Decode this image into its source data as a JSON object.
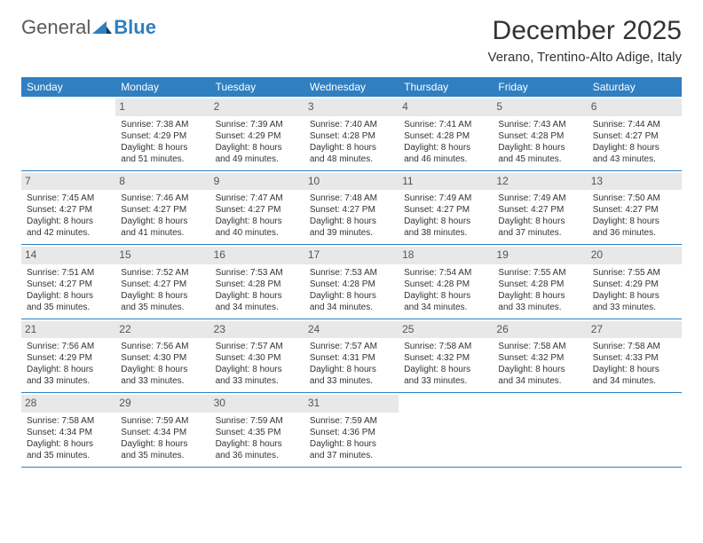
{
  "brand": {
    "part1": "General",
    "part2": "Blue"
  },
  "title": "December 2025",
  "location": "Verano, Trentino-Alto Adige, Italy",
  "colors": {
    "header_bg": "#2f7fc1",
    "header_fg": "#ffffff",
    "daynum_bg": "#e8e8e8",
    "row_border": "#2f7fc1",
    "text": "#333333",
    "page_bg": "#ffffff"
  },
  "typography": {
    "title_fontsize": 30,
    "location_fontsize": 15,
    "header_fontsize": 12,
    "cell_fontsize": 10,
    "daynum_fontsize": 12
  },
  "weekdays": [
    "Sunday",
    "Monday",
    "Tuesday",
    "Wednesday",
    "Thursday",
    "Friday",
    "Saturday"
  ],
  "weeks": [
    [
      null,
      {
        "n": "1",
        "sr": "Sunrise: 7:38 AM",
        "ss": "Sunset: 4:29 PM",
        "dl": "Daylight: 8 hours and 51 minutes."
      },
      {
        "n": "2",
        "sr": "Sunrise: 7:39 AM",
        "ss": "Sunset: 4:29 PM",
        "dl": "Daylight: 8 hours and 49 minutes."
      },
      {
        "n": "3",
        "sr": "Sunrise: 7:40 AM",
        "ss": "Sunset: 4:28 PM",
        "dl": "Daylight: 8 hours and 48 minutes."
      },
      {
        "n": "4",
        "sr": "Sunrise: 7:41 AM",
        "ss": "Sunset: 4:28 PM",
        "dl": "Daylight: 8 hours and 46 minutes."
      },
      {
        "n": "5",
        "sr": "Sunrise: 7:43 AM",
        "ss": "Sunset: 4:28 PM",
        "dl": "Daylight: 8 hours and 45 minutes."
      },
      {
        "n": "6",
        "sr": "Sunrise: 7:44 AM",
        "ss": "Sunset: 4:27 PM",
        "dl": "Daylight: 8 hours and 43 minutes."
      }
    ],
    [
      {
        "n": "7",
        "sr": "Sunrise: 7:45 AM",
        "ss": "Sunset: 4:27 PM",
        "dl": "Daylight: 8 hours and 42 minutes."
      },
      {
        "n": "8",
        "sr": "Sunrise: 7:46 AM",
        "ss": "Sunset: 4:27 PM",
        "dl": "Daylight: 8 hours and 41 minutes."
      },
      {
        "n": "9",
        "sr": "Sunrise: 7:47 AM",
        "ss": "Sunset: 4:27 PM",
        "dl": "Daylight: 8 hours and 40 minutes."
      },
      {
        "n": "10",
        "sr": "Sunrise: 7:48 AM",
        "ss": "Sunset: 4:27 PM",
        "dl": "Daylight: 8 hours and 39 minutes."
      },
      {
        "n": "11",
        "sr": "Sunrise: 7:49 AM",
        "ss": "Sunset: 4:27 PM",
        "dl": "Daylight: 8 hours and 38 minutes."
      },
      {
        "n": "12",
        "sr": "Sunrise: 7:49 AM",
        "ss": "Sunset: 4:27 PM",
        "dl": "Daylight: 8 hours and 37 minutes."
      },
      {
        "n": "13",
        "sr": "Sunrise: 7:50 AM",
        "ss": "Sunset: 4:27 PM",
        "dl": "Daylight: 8 hours and 36 minutes."
      }
    ],
    [
      {
        "n": "14",
        "sr": "Sunrise: 7:51 AM",
        "ss": "Sunset: 4:27 PM",
        "dl": "Daylight: 8 hours and 35 minutes."
      },
      {
        "n": "15",
        "sr": "Sunrise: 7:52 AM",
        "ss": "Sunset: 4:27 PM",
        "dl": "Daylight: 8 hours and 35 minutes."
      },
      {
        "n": "16",
        "sr": "Sunrise: 7:53 AM",
        "ss": "Sunset: 4:28 PM",
        "dl": "Daylight: 8 hours and 34 minutes."
      },
      {
        "n": "17",
        "sr": "Sunrise: 7:53 AM",
        "ss": "Sunset: 4:28 PM",
        "dl": "Daylight: 8 hours and 34 minutes."
      },
      {
        "n": "18",
        "sr": "Sunrise: 7:54 AM",
        "ss": "Sunset: 4:28 PM",
        "dl": "Daylight: 8 hours and 34 minutes."
      },
      {
        "n": "19",
        "sr": "Sunrise: 7:55 AM",
        "ss": "Sunset: 4:28 PM",
        "dl": "Daylight: 8 hours and 33 minutes."
      },
      {
        "n": "20",
        "sr": "Sunrise: 7:55 AM",
        "ss": "Sunset: 4:29 PM",
        "dl": "Daylight: 8 hours and 33 minutes."
      }
    ],
    [
      {
        "n": "21",
        "sr": "Sunrise: 7:56 AM",
        "ss": "Sunset: 4:29 PM",
        "dl": "Daylight: 8 hours and 33 minutes."
      },
      {
        "n": "22",
        "sr": "Sunrise: 7:56 AM",
        "ss": "Sunset: 4:30 PM",
        "dl": "Daylight: 8 hours and 33 minutes."
      },
      {
        "n": "23",
        "sr": "Sunrise: 7:57 AM",
        "ss": "Sunset: 4:30 PM",
        "dl": "Daylight: 8 hours and 33 minutes."
      },
      {
        "n": "24",
        "sr": "Sunrise: 7:57 AM",
        "ss": "Sunset: 4:31 PM",
        "dl": "Daylight: 8 hours and 33 minutes."
      },
      {
        "n": "25",
        "sr": "Sunrise: 7:58 AM",
        "ss": "Sunset: 4:32 PM",
        "dl": "Daylight: 8 hours and 33 minutes."
      },
      {
        "n": "26",
        "sr": "Sunrise: 7:58 AM",
        "ss": "Sunset: 4:32 PM",
        "dl": "Daylight: 8 hours and 34 minutes."
      },
      {
        "n": "27",
        "sr": "Sunrise: 7:58 AM",
        "ss": "Sunset: 4:33 PM",
        "dl": "Daylight: 8 hours and 34 minutes."
      }
    ],
    [
      {
        "n": "28",
        "sr": "Sunrise: 7:58 AM",
        "ss": "Sunset: 4:34 PM",
        "dl": "Daylight: 8 hours and 35 minutes."
      },
      {
        "n": "29",
        "sr": "Sunrise: 7:59 AM",
        "ss": "Sunset: 4:34 PM",
        "dl": "Daylight: 8 hours and 35 minutes."
      },
      {
        "n": "30",
        "sr": "Sunrise: 7:59 AM",
        "ss": "Sunset: 4:35 PM",
        "dl": "Daylight: 8 hours and 36 minutes."
      },
      {
        "n": "31",
        "sr": "Sunrise: 7:59 AM",
        "ss": "Sunset: 4:36 PM",
        "dl": "Daylight: 8 hours and 37 minutes."
      },
      null,
      null,
      null
    ]
  ]
}
